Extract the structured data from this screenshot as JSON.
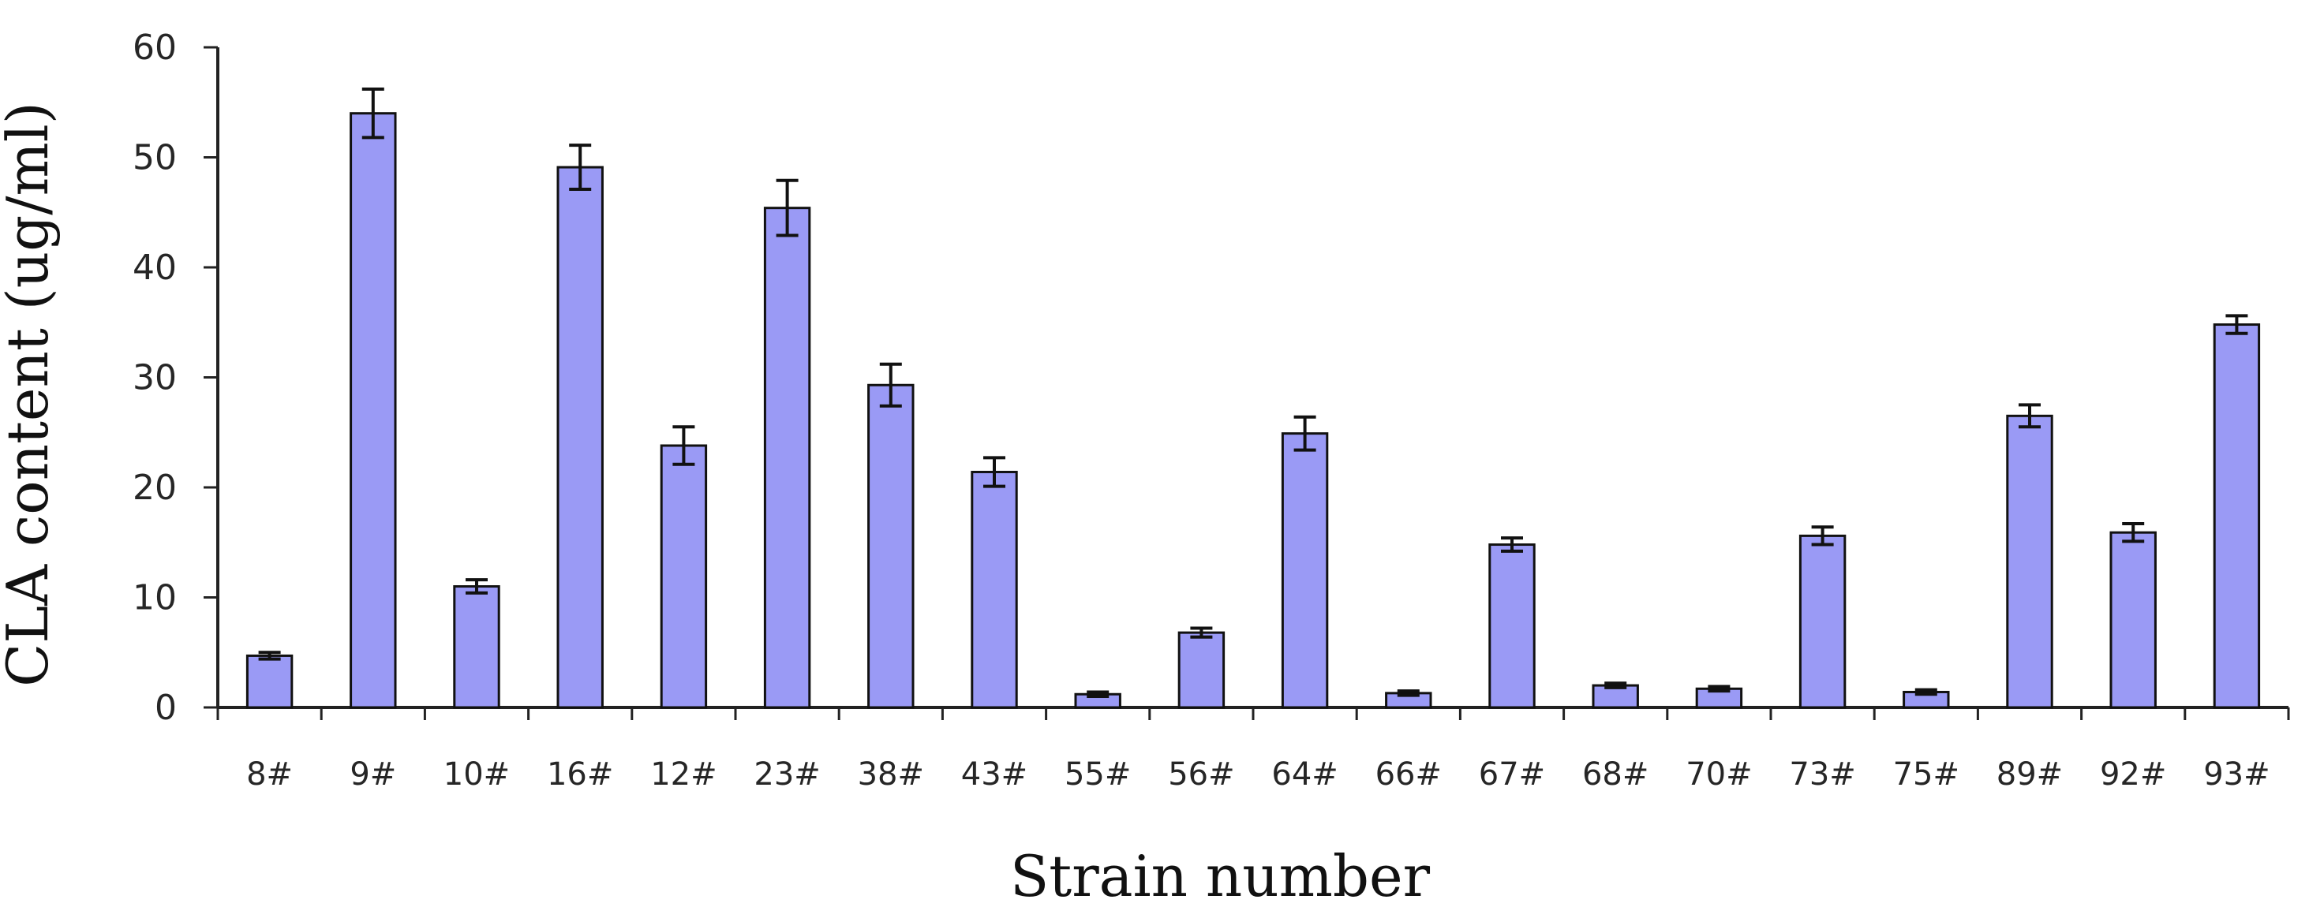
{
  "chart_data": {
    "type": "bar",
    "title": "",
    "xlabel": "Strain number",
    "ylabel": "CLA content (ug/ml)",
    "ylim": [
      0,
      60
    ],
    "yticks": [
      "0",
      "10",
      "20",
      "30",
      "40",
      "50",
      "60"
    ],
    "grid": false,
    "legend": "none",
    "bar_color": "#9a9af5",
    "categories": [
      "8#",
      "9#",
      "10#",
      "16#",
      "12#",
      "23#",
      "38#",
      "43#",
      "55#",
      "56#",
      "64#",
      "66#",
      "67#",
      "68#",
      "70#",
      "73#",
      "75#",
      "89#",
      "92#",
      "93#"
    ],
    "values": [
      4.7,
      54.0,
      11.0,
      49.1,
      23.8,
      45.4,
      29.3,
      21.4,
      1.2,
      6.8,
      24.9,
      1.3,
      14.8,
      2.0,
      1.7,
      15.6,
      1.4,
      26.5,
      15.9,
      34.8
    ],
    "errors": [
      0.3,
      2.2,
      0.6,
      2.0,
      1.7,
      2.5,
      1.9,
      1.3,
      0.2,
      0.4,
      1.5,
      0.2,
      0.6,
      0.2,
      0.2,
      0.8,
      0.2,
      1.0,
      0.8,
      0.8
    ]
  }
}
